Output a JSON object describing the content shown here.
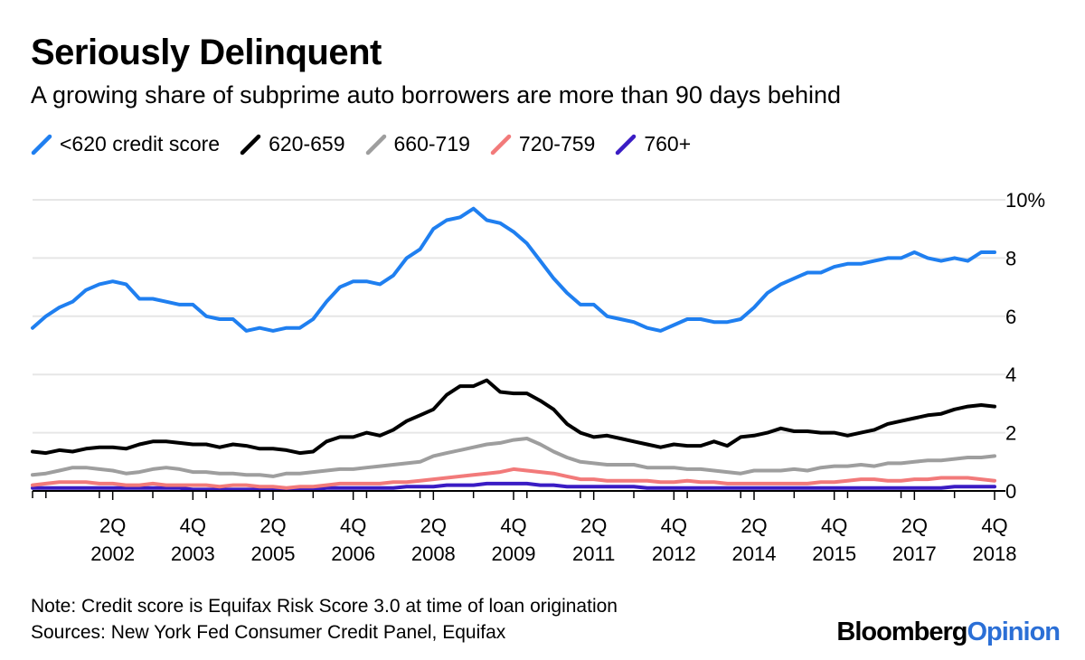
{
  "header": {
    "title": "Seriously Delinquent",
    "subtitle": "A growing share of subprime auto borrowers are more than 90 days behind"
  },
  "chart_data": {
    "type": "line",
    "title": "Seriously Delinquent",
    "subtitle": "A growing share of subprime auto borrowers are more than 90 days behind",
    "xlabel": "",
    "ylabel": "",
    "ylim": [
      0,
      10
    ],
    "y_ticks": [
      "10%",
      "8",
      "6",
      "4",
      "2",
      "0"
    ],
    "y_tick_values": [
      10,
      8,
      6,
      4,
      2,
      0
    ],
    "x_ticks": [
      {
        "top": "2Q",
        "bottom": "2002"
      },
      {
        "top": "4Q",
        "bottom": "2003"
      },
      {
        "top": "2Q",
        "bottom": "2005"
      },
      {
        "top": "4Q",
        "bottom": "2006"
      },
      {
        "top": "2Q",
        "bottom": "2008"
      },
      {
        "top": "4Q",
        "bottom": "2009"
      },
      {
        "top": "2Q",
        "bottom": "2011"
      },
      {
        "top": "4Q",
        "bottom": "2012"
      },
      {
        "top": "2Q",
        "bottom": "2014"
      },
      {
        "top": "4Q",
        "bottom": "2015"
      },
      {
        "top": "2Q",
        "bottom": "2017"
      },
      {
        "top": "4Q",
        "bottom": "2018"
      }
    ],
    "x_tick_positions": [
      2002.25,
      2003.75,
      2005.25,
      2006.75,
      2008.25,
      2009.75,
      2011.25,
      2012.75,
      2014.25,
      2015.75,
      2017.25,
      2018.75
    ],
    "x_range": [
      2000.75,
      2018.75
    ],
    "grid": true,
    "legend_position": "top-left",
    "x": [
      2000.75,
      2001.0,
      2001.25,
      2001.5,
      2001.75,
      2002.0,
      2002.25,
      2002.5,
      2002.75,
      2003.0,
      2003.25,
      2003.5,
      2003.75,
      2004.0,
      2004.25,
      2004.5,
      2004.75,
      2005.0,
      2005.25,
      2005.5,
      2005.75,
      2006.0,
      2006.25,
      2006.5,
      2006.75,
      2007.0,
      2007.25,
      2007.5,
      2007.75,
      2008.0,
      2008.25,
      2008.5,
      2008.75,
      2009.0,
      2009.25,
      2009.5,
      2009.75,
      2010.0,
      2010.25,
      2010.5,
      2010.75,
      2011.0,
      2011.25,
      2011.5,
      2011.75,
      2012.0,
      2012.25,
      2012.5,
      2012.75,
      2013.0,
      2013.25,
      2013.5,
      2013.75,
      2014.0,
      2014.25,
      2014.5,
      2014.75,
      2015.0,
      2015.25,
      2015.5,
      2015.75,
      2016.0,
      2016.25,
      2016.5,
      2016.75,
      2017.0,
      2017.25,
      2017.5,
      2017.75,
      2018.0,
      2018.25,
      2018.5,
      2018.75
    ],
    "series": [
      {
        "name": "<620 credit score",
        "color": "#1f7ff0",
        "values": [
          5.6,
          6.0,
          6.3,
          6.5,
          6.9,
          7.1,
          7.2,
          7.1,
          6.6,
          6.6,
          6.5,
          6.4,
          6.4,
          6.0,
          5.9,
          5.9,
          5.5,
          5.6,
          5.5,
          5.6,
          5.6,
          5.9,
          6.5,
          7.0,
          7.2,
          7.2,
          7.1,
          7.4,
          8.0,
          8.3,
          9.0,
          9.3,
          9.4,
          9.7,
          9.3,
          9.2,
          8.9,
          8.5,
          7.9,
          7.3,
          6.8,
          6.4,
          6.4,
          6.0,
          5.9,
          5.8,
          5.6,
          5.5,
          5.7,
          5.9,
          5.9,
          5.8,
          5.8,
          5.9,
          6.3,
          6.8,
          7.1,
          7.3,
          7.5,
          7.5,
          7.7,
          7.8,
          7.8,
          7.9,
          8.0,
          8.0,
          8.2,
          8.0,
          7.9,
          8.0,
          7.9,
          8.2,
          8.2
        ]
      },
      {
        "name": "620-659",
        "color": "#000000",
        "values": [
          1.35,
          1.3,
          1.4,
          1.35,
          1.45,
          1.5,
          1.5,
          1.45,
          1.6,
          1.7,
          1.7,
          1.65,
          1.6,
          1.6,
          1.5,
          1.6,
          1.55,
          1.45,
          1.45,
          1.4,
          1.3,
          1.35,
          1.7,
          1.85,
          1.85,
          2.0,
          1.9,
          2.1,
          2.4,
          2.6,
          2.8,
          3.3,
          3.6,
          3.6,
          3.8,
          3.4,
          3.35,
          3.35,
          3.1,
          2.8,
          2.3,
          2.0,
          1.85,
          1.9,
          1.8,
          1.7,
          1.6,
          1.5,
          1.6,
          1.55,
          1.55,
          1.7,
          1.55,
          1.85,
          1.9,
          2.0,
          2.15,
          2.05,
          2.05,
          2.0,
          2.0,
          1.9,
          2.0,
          2.1,
          2.3,
          2.4,
          2.5,
          2.6,
          2.65,
          2.8,
          2.9,
          2.95,
          2.9
        ]
      },
      {
        "name": "660-719",
        "color": "#9e9e9e",
        "values": [
          0.55,
          0.6,
          0.7,
          0.8,
          0.8,
          0.75,
          0.7,
          0.6,
          0.65,
          0.75,
          0.8,
          0.75,
          0.65,
          0.65,
          0.6,
          0.6,
          0.55,
          0.55,
          0.5,
          0.6,
          0.6,
          0.65,
          0.7,
          0.75,
          0.75,
          0.8,
          0.85,
          0.9,
          0.95,
          1.0,
          1.2,
          1.3,
          1.4,
          1.5,
          1.6,
          1.65,
          1.75,
          1.8,
          1.6,
          1.35,
          1.15,
          1.0,
          0.95,
          0.9,
          0.9,
          0.9,
          0.8,
          0.8,
          0.8,
          0.75,
          0.75,
          0.7,
          0.65,
          0.6,
          0.7,
          0.7,
          0.7,
          0.75,
          0.7,
          0.8,
          0.85,
          0.85,
          0.9,
          0.85,
          0.95,
          0.95,
          1.0,
          1.05,
          1.05,
          1.1,
          1.15,
          1.15,
          1.2
        ]
      },
      {
        "name": "720-759",
        "color": "#f27a7a",
        "values": [
          0.2,
          0.25,
          0.3,
          0.3,
          0.3,
          0.25,
          0.25,
          0.2,
          0.2,
          0.25,
          0.2,
          0.2,
          0.2,
          0.2,
          0.15,
          0.2,
          0.2,
          0.15,
          0.15,
          0.1,
          0.15,
          0.15,
          0.2,
          0.25,
          0.25,
          0.25,
          0.25,
          0.3,
          0.3,
          0.35,
          0.4,
          0.45,
          0.5,
          0.55,
          0.6,
          0.65,
          0.75,
          0.7,
          0.65,
          0.6,
          0.5,
          0.4,
          0.4,
          0.35,
          0.35,
          0.35,
          0.35,
          0.3,
          0.3,
          0.35,
          0.3,
          0.3,
          0.25,
          0.25,
          0.25,
          0.25,
          0.25,
          0.25,
          0.25,
          0.3,
          0.3,
          0.35,
          0.4,
          0.4,
          0.35,
          0.35,
          0.4,
          0.4,
          0.45,
          0.45,
          0.45,
          0.4,
          0.35
        ]
      },
      {
        "name": "760+",
        "color": "#3a1cc4",
        "values": [
          0.1,
          0.1,
          0.1,
          0.1,
          0.1,
          0.1,
          0.1,
          0.1,
          0.1,
          0.1,
          0.1,
          0.1,
          0.05,
          0.05,
          0.05,
          0.05,
          0.05,
          0.05,
          0.05,
          0.05,
          0.05,
          0.05,
          0.1,
          0.1,
          0.1,
          0.1,
          0.1,
          0.1,
          0.15,
          0.15,
          0.15,
          0.2,
          0.2,
          0.2,
          0.25,
          0.25,
          0.25,
          0.25,
          0.2,
          0.2,
          0.15,
          0.15,
          0.15,
          0.15,
          0.15,
          0.15,
          0.1,
          0.1,
          0.1,
          0.1,
          0.1,
          0.1,
          0.1,
          0.1,
          0.1,
          0.1,
          0.1,
          0.1,
          0.1,
          0.1,
          0.1,
          0.1,
          0.1,
          0.1,
          0.1,
          0.1,
          0.1,
          0.1,
          0.1,
          0.15,
          0.15,
          0.15,
          0.15
        ]
      }
    ]
  },
  "footer": {
    "note": "Note: Credit score is Equifax Risk Score 3.0 at time of loan origination",
    "sources": "Sources: New York Fed Consumer Credit Panel, Equifax",
    "brand_part1": "Bloomberg",
    "brand_part2": "Opinion"
  }
}
